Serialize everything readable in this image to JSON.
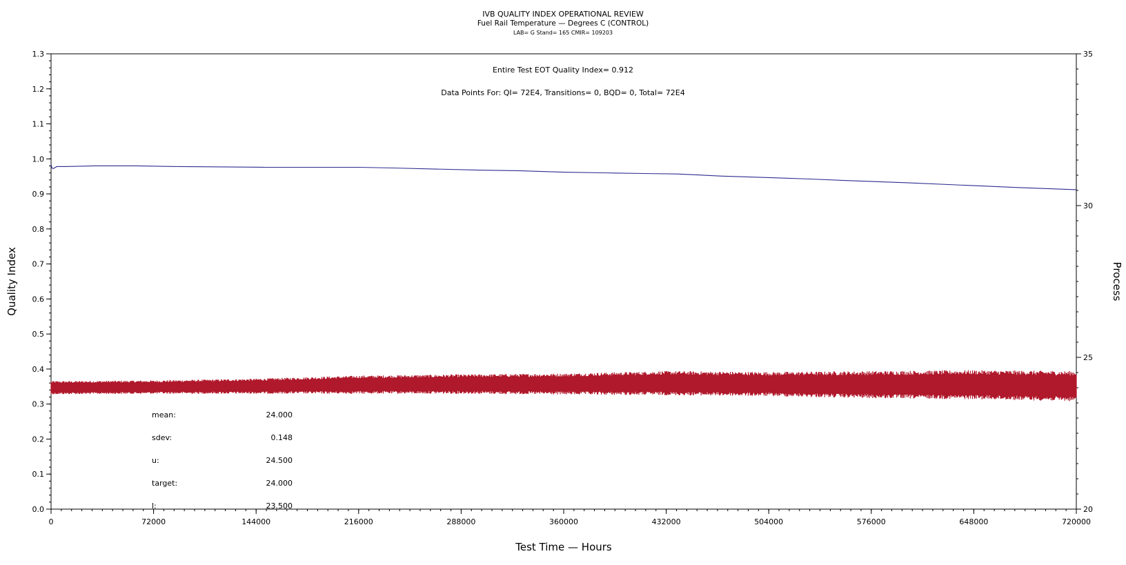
{
  "titles": {
    "line1": "IVB QUALITY INDEX OPERATIONAL REVIEW",
    "line2": "Fuel Rail Temperature — Degrees C (CONTROL)",
    "line3": "LAB= G Stand= 165 CMIR= 109203"
  },
  "annotations": {
    "quality_index": "Entire Test EOT Quality Index=   0.912",
    "data_points": "Data Points For: QI=  72E4, Transitions=     0, BQD=     0, Total=  72E4"
  },
  "stats": [
    {
      "label": "mean:",
      "value": "24.000"
    },
    {
      "label": "sdev:",
      "value": "0.148"
    },
    {
      "label": "u:",
      "value": "24.500"
    },
    {
      "label": "target:",
      "value": "24.000"
    },
    {
      "label": "l:",
      "value": "23.500"
    }
  ],
  "chart_data": {
    "type": "line",
    "xlabel": "Test Time — Hours",
    "ylabel": "Quality Index",
    "y2label": "Process",
    "xlim": [
      0,
      720000
    ],
    "ylim": [
      0,
      1.3
    ],
    "y2lim": [
      20,
      35
    ],
    "xticks": [
      "0",
      "72000",
      "144000",
      "216000",
      "288000",
      "360000",
      "432000",
      "504000",
      "576000",
      "648000",
      "720000"
    ],
    "yticks": [
      "0.0",
      "0.1",
      "0.2",
      "0.3",
      "0.4",
      "0.5",
      "0.6",
      "0.7",
      "0.8",
      "0.9",
      "1.0",
      "1.1",
      "1.2",
      "1.3"
    ],
    "y2ticks": [
      "20",
      "25",
      "30",
      "35"
    ],
    "series": [
      {
        "axis": "left",
        "color": "#2b2b8f",
        "x": [
          0,
          500,
          1500,
          4000,
          10000,
          30000,
          60000,
          90000,
          120000,
          150000,
          180000,
          216000,
          240000,
          270000,
          300000,
          330000,
          360000,
          390000,
          420000,
          440000,
          470000,
          500000,
          530000,
          560000,
          600000,
          640000,
          680000,
          720000
        ],
        "values": [
          0.985,
          0.975,
          0.972,
          0.978,
          0.978,
          0.98,
          0.98,
          0.978,
          0.977,
          0.976,
          0.976,
          0.976,
          0.974,
          0.971,
          0.968,
          0.966,
          0.962,
          0.96,
          0.958,
          0.957,
          0.951,
          0.947,
          0.943,
          0.938,
          0.932,
          0.925,
          0.918,
          0.912
        ]
      },
      {
        "axis": "right",
        "color": "#b0182b",
        "x": [
          0,
          72000,
          144000,
          216000,
          288000,
          360000,
          432000,
          504000,
          576000,
          648000,
          720000
        ],
        "center": [
          24.0,
          24.02,
          24.05,
          24.1,
          24.12,
          24.12,
          24.15,
          24.12,
          24.1,
          24.1,
          24.05
        ],
        "halfwidth": [
          0.22,
          0.22,
          0.25,
          0.3,
          0.32,
          0.35,
          0.4,
          0.4,
          0.45,
          0.48,
          0.5
        ]
      }
    ]
  }
}
